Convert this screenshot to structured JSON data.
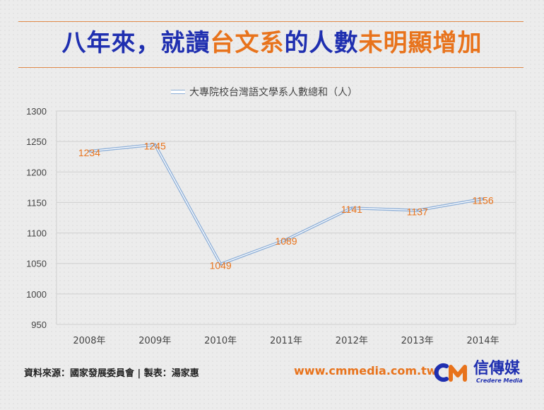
{
  "title": {
    "part1": "八年來，就讀",
    "part2": "台文系",
    "part3": "的人數",
    "part4": "未明顯增加"
  },
  "colors": {
    "title_blue": "#1f2fb0",
    "accent_orange": "#e8731c",
    "line": "#8fb0d8",
    "grid": "#d0d0d0",
    "background": "#ececec"
  },
  "chart_data": {
    "type": "line",
    "title": "",
    "xlabel": "",
    "ylabel": "",
    "categories": [
      "2008年",
      "2009年",
      "2010年",
      "2011年",
      "2012年",
      "2013年",
      "2014年"
    ],
    "series": [
      {
        "name": "大專院校台灣語文學系人數總和（人）",
        "values": [
          1234,
          1245,
          1049,
          1089,
          1141,
          1137,
          1156
        ]
      }
    ],
    "ylim": [
      950,
      1300
    ],
    "yticks": [
      950,
      1000,
      1050,
      1100,
      1150,
      1200,
      1250,
      1300
    ],
    "grid": true,
    "legend_position": "top-center",
    "data_labels": true
  },
  "footer": {
    "source": "資料來源：國家發展委員會 | 製表：湯家惠",
    "website": "www.cmmedia.com.tw",
    "logo_name": "信傳媒",
    "logo_sub": "Credere Media"
  }
}
